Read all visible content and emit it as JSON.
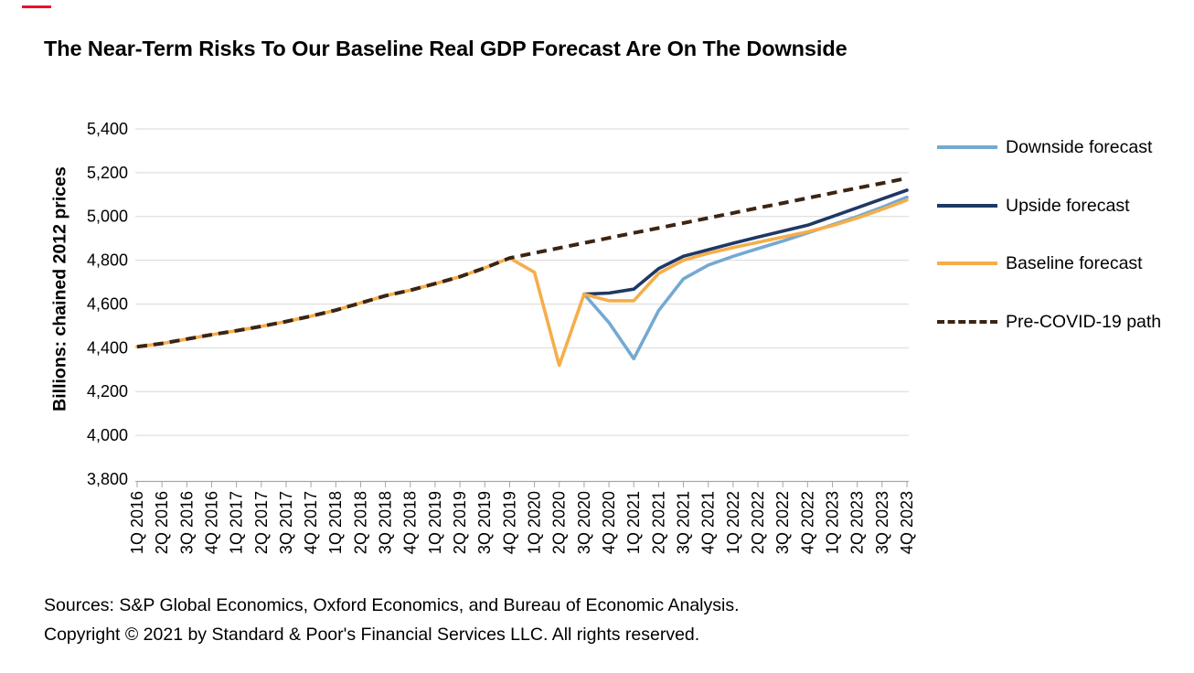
{
  "page": {
    "accent_color": "#E8112D"
  },
  "chart_data": {
    "type": "line",
    "title": "The Near-Term Risks To Our Baseline Real GDP Forecast Are On The Downside",
    "ylabel": "Billions: chained 2012 prices",
    "xlabel": "",
    "ylim": [
      3800,
      5400
    ],
    "ytick_step": 200,
    "grid": true,
    "legend_position": "right",
    "grid_color": "#D9D9D9",
    "axis_color": "#A6A6A6",
    "categories": [
      "1Q 2016",
      "2Q 2016",
      "3Q 2016",
      "4Q 2016",
      "1Q 2017",
      "2Q 2017",
      "3Q 2017",
      "4Q 2017",
      "1Q 2018",
      "2Q 2018",
      "3Q 2018",
      "4Q 2018",
      "1Q 2019",
      "2Q 2019",
      "3Q 2019",
      "4Q 2019",
      "1Q 2020",
      "2Q 2020",
      "3Q 2020",
      "4Q 2020",
      "1Q 2021",
      "2Q 2021",
      "3Q 2021",
      "4Q 2021",
      "1Q 2022",
      "2Q 2022",
      "3Q 2022",
      "4Q 2022",
      "1Q 2023",
      "2Q 2023",
      "3Q 2023",
      "4Q 2023"
    ],
    "series": [
      {
        "name": "Downside forecast",
        "color": "#74A9D1",
        "dash": "solid",
        "values": [
          null,
          null,
          null,
          null,
          null,
          null,
          null,
          null,
          null,
          null,
          null,
          null,
          null,
          null,
          null,
          null,
          null,
          null,
          4645,
          4515,
          4350,
          4570,
          4715,
          4778,
          4818,
          4853,
          4888,
          4925,
          4962,
          5000,
          5042,
          5088
        ]
      },
      {
        "name": "Upside forecast",
        "color": "#1F3864",
        "dash": "solid",
        "values": [
          null,
          null,
          null,
          null,
          null,
          null,
          null,
          null,
          null,
          null,
          null,
          null,
          null,
          null,
          null,
          null,
          null,
          null,
          4645,
          4650,
          4668,
          4762,
          4818,
          4848,
          4878,
          4906,
          4933,
          4960,
          5000,
          5040,
          5080,
          5120
        ]
      },
      {
        "name": "Baseline forecast",
        "color": "#F5AE4A",
        "dash": "solid",
        "values": [
          4405,
          4420,
          4440,
          4460,
          4478,
          4498,
          4520,
          4545,
          4572,
          4605,
          4638,
          4663,
          4693,
          4725,
          4765,
          4810,
          4745,
          4320,
          4645,
          4615,
          4615,
          4740,
          4800,
          4832,
          4858,
          4882,
          4906,
          4930,
          4958,
          4993,
          5033,
          5075
        ]
      },
      {
        "name": "Pre-COVID-19 path",
        "color": "#3A2515",
        "dash": "dashed",
        "values": [
          4405,
          4420,
          4440,
          4460,
          4478,
          4498,
          4520,
          4545,
          4572,
          4605,
          4638,
          4663,
          4693,
          4725,
          4765,
          4810,
          4833,
          4856,
          4879,
          4902,
          4925,
          4947,
          4970,
          4993,
          5016,
          5039,
          5061,
          5084,
          5107,
          5130,
          5152,
          5175
        ]
      }
    ]
  },
  "footer": {
    "sources": "Sources: S&P Global Economics, Oxford Economics, and Bureau of Economic Analysis.",
    "copyright": "Copyright © 2021 by Standard & Poor's Financial Services LLC. All rights reserved."
  }
}
